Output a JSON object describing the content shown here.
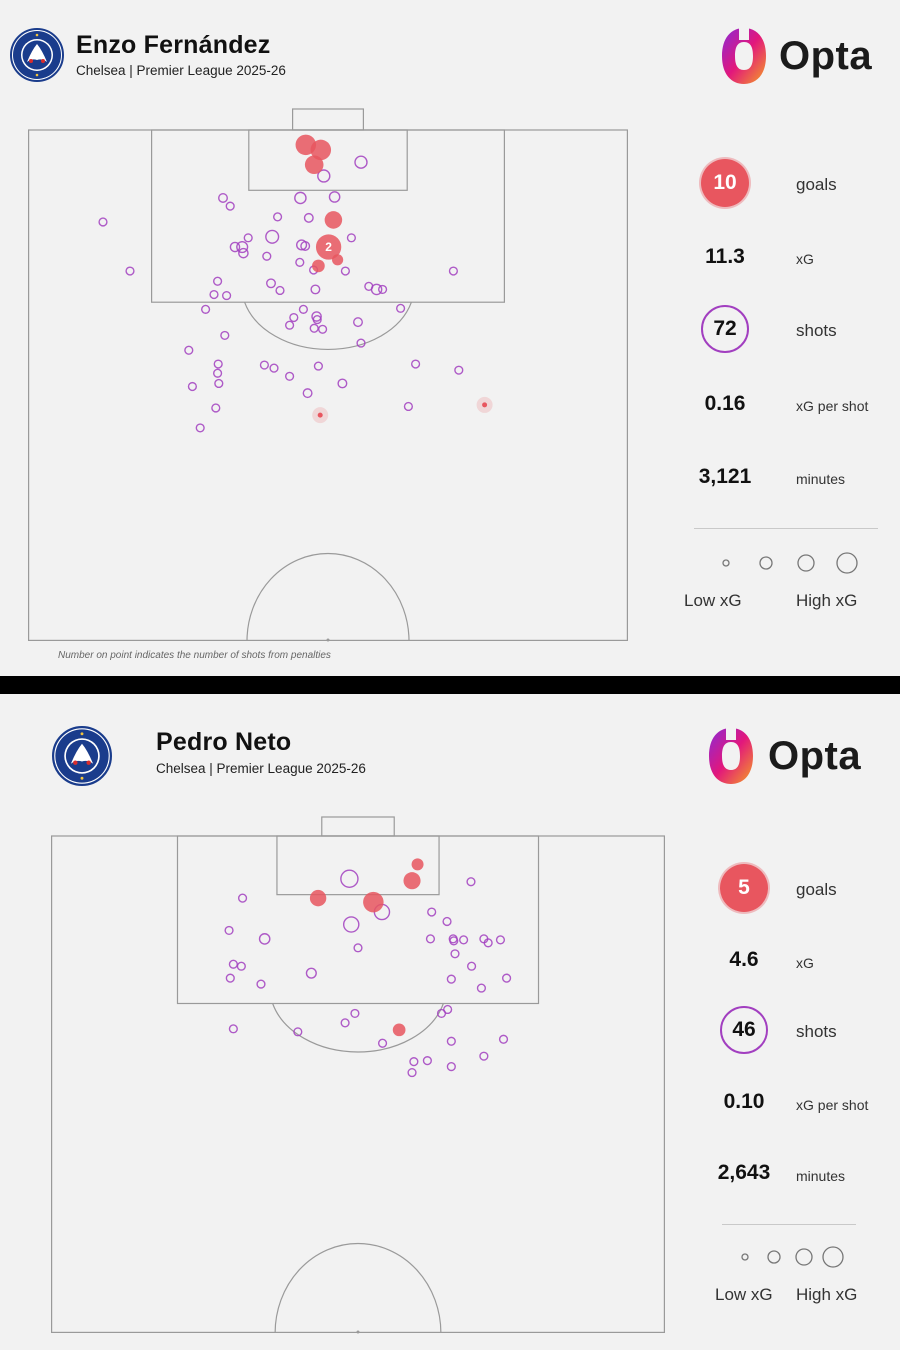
{
  "panels": [
    {
      "player": "Enzo Fernández",
      "subtitle": "Chelsea | Premier League 2025-26",
      "brand": "Opta",
      "stats": [
        {
          "value": "10",
          "label": "goals"
        },
        {
          "value": "11.3",
          "label": "xG"
        },
        {
          "value": "72",
          "label": "shots"
        },
        {
          "value": "0.16",
          "label": "xG per shot"
        },
        {
          "value": "3,121",
          "label": "minutes"
        }
      ],
      "legend": {
        "low": "Low xG",
        "high": "High xG"
      },
      "footnote": "Number on point indicates the number of shots from penalties"
    },
    {
      "player": "Pedro Neto",
      "subtitle": "Chelsea | Premier League 2025-26",
      "brand": "Opta",
      "stats": [
        {
          "value": "5",
          "label": "goals"
        },
        {
          "value": "4.6",
          "label": "xG"
        },
        {
          "value": "46",
          "label": "shots"
        },
        {
          "value": "0.10",
          "label": "xG per shot"
        },
        {
          "value": "2,643",
          "label": "minutes"
        }
      ],
      "legend": {
        "low": "Low xG",
        "high": "High xG"
      }
    }
  ],
  "colors": {
    "goal": "#e8565f",
    "shot": "#a23fc0",
    "pitch_line": "#9a9a9a",
    "background": "#f2f2f2"
  },
  "chart_data": [
    {
      "type": "scatter",
      "title": "Enzo Fernández",
      "coords": "pitch half, x = 0-100 across width, y = 0-100 distance from goal line to halfway line",
      "goals": [
        {
          "x": 46.3,
          "y": 2.9,
          "xg": 0.45
        },
        {
          "x": 48.8,
          "y": 3.9,
          "xg": 0.45
        },
        {
          "x": 47.7,
          "y": 6.8,
          "xg": 0.35
        },
        {
          "x": 50.9,
          "y": 17.6,
          "xg": 0.3
        },
        {
          "x": 50.1,
          "y": 22.9,
          "xg": 0.76,
          "label": "2"
        },
        {
          "x": 48.4,
          "y": 26.6,
          "xg": 0.12
        },
        {
          "x": 51.6,
          "y": 25.4,
          "xg": 0.08
        },
        {
          "x": 48.7,
          "y": 55.8,
          "xg": 0.03
        },
        {
          "x": 76.1,
          "y": 53.8,
          "xg": 0.03
        }
      ],
      "shots": [
        {
          "x": 55.5,
          "y": 6.3,
          "xg": 0.1
        },
        {
          "x": 49.3,
          "y": 9.0,
          "xg": 0.1
        },
        {
          "x": 32.5,
          "y": 13.3,
          "xg": 0.03
        },
        {
          "x": 45.4,
          "y": 13.3,
          "xg": 0.08
        },
        {
          "x": 51.1,
          "y": 13.1,
          "xg": 0.06
        },
        {
          "x": 33.7,
          "y": 14.9,
          "xg": 0.02
        },
        {
          "x": 41.6,
          "y": 17.0,
          "xg": 0.02
        },
        {
          "x": 46.8,
          "y": 17.2,
          "xg": 0.03
        },
        {
          "x": 40.7,
          "y": 20.9,
          "xg": 0.12
        },
        {
          "x": 36.7,
          "y": 21.1,
          "xg": 0.02
        },
        {
          "x": 34.5,
          "y": 22.9,
          "xg": 0.04
        },
        {
          "x": 35.7,
          "y": 22.9,
          "xg": 0.07
        },
        {
          "x": 45.6,
          "y": 22.5,
          "xg": 0.05
        },
        {
          "x": 46.2,
          "y": 22.7,
          "xg": 0.03
        },
        {
          "x": 53.9,
          "y": 21.1,
          "xg": 0.02
        },
        {
          "x": 12.5,
          "y": 18.0,
          "xg": 0.02
        },
        {
          "x": 35.9,
          "y": 24.1,
          "xg": 0.04
        },
        {
          "x": 39.8,
          "y": 24.7,
          "xg": 0.02
        },
        {
          "x": 45.3,
          "y": 25.9,
          "xg": 0.02
        },
        {
          "x": 47.6,
          "y": 27.4,
          "xg": 0.02
        },
        {
          "x": 52.9,
          "y": 27.6,
          "xg": 0.02
        },
        {
          "x": 17.0,
          "y": 27.6,
          "xg": 0.02
        },
        {
          "x": 70.9,
          "y": 27.6,
          "xg": 0.02
        },
        {
          "x": 31.6,
          "y": 29.6,
          "xg": 0.02
        },
        {
          "x": 40.5,
          "y": 30.0,
          "xg": 0.03
        },
        {
          "x": 42.0,
          "y": 31.4,
          "xg": 0.02
        },
        {
          "x": 47.9,
          "y": 31.2,
          "xg": 0.03
        },
        {
          "x": 56.8,
          "y": 30.6,
          "xg": 0.02
        },
        {
          "x": 58.1,
          "y": 31.2,
          "xg": 0.06
        },
        {
          "x": 59.1,
          "y": 31.2,
          "xg": 0.02
        },
        {
          "x": 31.0,
          "y": 32.2,
          "xg": 0.02
        },
        {
          "x": 33.1,
          "y": 32.4,
          "xg": 0.02
        },
        {
          "x": 29.6,
          "y": 35.1,
          "xg": 0.02
        },
        {
          "x": 45.9,
          "y": 35.1,
          "xg": 0.02
        },
        {
          "x": 62.1,
          "y": 34.9,
          "xg": 0.02
        },
        {
          "x": 44.3,
          "y": 36.7,
          "xg": 0.02
        },
        {
          "x": 48.1,
          "y": 36.5,
          "xg": 0.04
        },
        {
          "x": 48.2,
          "y": 37.1,
          "xg": 0.02
        },
        {
          "x": 55.0,
          "y": 37.6,
          "xg": 0.03
        },
        {
          "x": 43.6,
          "y": 38.2,
          "xg": 0.02
        },
        {
          "x": 47.7,
          "y": 38.8,
          "xg": 0.02
        },
        {
          "x": 49.1,
          "y": 39.0,
          "xg": 0.02
        },
        {
          "x": 32.8,
          "y": 40.2,
          "xg": 0.02
        },
        {
          "x": 55.5,
          "y": 41.7,
          "xg": 0.02
        },
        {
          "x": 26.8,
          "y": 43.1,
          "xg": 0.02
        },
        {
          "x": 31.7,
          "y": 45.8,
          "xg": 0.02
        },
        {
          "x": 64.6,
          "y": 45.8,
          "xg": 0.02
        },
        {
          "x": 31.6,
          "y": 47.6,
          "xg": 0.02
        },
        {
          "x": 41.0,
          "y": 46.6,
          "xg": 0.02
        },
        {
          "x": 39.4,
          "y": 46.0,
          "xg": 0.02
        },
        {
          "x": 48.4,
          "y": 46.2,
          "xg": 0.02
        },
        {
          "x": 71.8,
          "y": 47.0,
          "xg": 0.02
        },
        {
          "x": 43.6,
          "y": 48.2,
          "xg": 0.02
        },
        {
          "x": 31.8,
          "y": 49.6,
          "xg": 0.02
        },
        {
          "x": 27.4,
          "y": 50.2,
          "xg": 0.02
        },
        {
          "x": 52.4,
          "y": 49.6,
          "xg": 0.03
        },
        {
          "x": 46.6,
          "y": 51.5,
          "xg": 0.03
        },
        {
          "x": 31.3,
          "y": 54.4,
          "xg": 0.02
        },
        {
          "x": 63.4,
          "y": 54.1,
          "xg": 0.02
        },
        {
          "x": 28.7,
          "y": 58.3,
          "xg": 0.02
        }
      ]
    },
    {
      "type": "scatter",
      "title": "Pedro Neto",
      "coords": "pitch half, x = 0-100 across width, y = 0-100 distance from goal line to halfway line",
      "goals": [
        {
          "x": 59.7,
          "y": 5.7,
          "xg": 0.1
        },
        {
          "x": 58.8,
          "y": 9.0,
          "xg": 0.28
        },
        {
          "x": 43.5,
          "y": 12.5,
          "xg": 0.25
        },
        {
          "x": 52.5,
          "y": 13.3,
          "xg": 0.45
        },
        {
          "x": 56.7,
          "y": 39.0,
          "xg": 0.12
        }
      ],
      "shots": [
        {
          "x": 48.6,
          "y": 8.6,
          "xg": 0.28
        },
        {
          "x": 68.4,
          "y": 9.2,
          "xg": 0.02
        },
        {
          "x": 31.2,
          "y": 12.5,
          "xg": 0.02
        },
        {
          "x": 53.9,
          "y": 15.3,
          "xg": 0.2
        },
        {
          "x": 48.9,
          "y": 17.8,
          "xg": 0.2
        },
        {
          "x": 62.0,
          "y": 15.3,
          "xg": 0.02
        },
        {
          "x": 64.5,
          "y": 17.2,
          "xg": 0.02
        },
        {
          "x": 29.0,
          "y": 19.0,
          "xg": 0.02
        },
        {
          "x": 65.5,
          "y": 20.7,
          "xg": 0.02
        },
        {
          "x": 34.8,
          "y": 20.7,
          "xg": 0.06
        },
        {
          "x": 61.8,
          "y": 20.7,
          "xg": 0.02
        },
        {
          "x": 67.2,
          "y": 20.9,
          "xg": 0.02
        },
        {
          "x": 73.2,
          "y": 20.9,
          "xg": 0.02
        },
        {
          "x": 65.6,
          "y": 21.1,
          "xg": 0.02
        },
        {
          "x": 70.5,
          "y": 20.7,
          "xg": 0.02
        },
        {
          "x": 71.2,
          "y": 21.5,
          "xg": 0.02
        },
        {
          "x": 50.0,
          "y": 22.5,
          "xg": 0.02
        },
        {
          "x": 65.8,
          "y": 23.7,
          "xg": 0.02
        },
        {
          "x": 29.7,
          "y": 25.8,
          "xg": 0.02
        },
        {
          "x": 31.0,
          "y": 26.2,
          "xg": 0.02
        },
        {
          "x": 68.5,
          "y": 26.2,
          "xg": 0.02
        },
        {
          "x": 42.4,
          "y": 27.6,
          "xg": 0.05
        },
        {
          "x": 29.2,
          "y": 28.6,
          "xg": 0.02
        },
        {
          "x": 65.2,
          "y": 28.8,
          "xg": 0.02
        },
        {
          "x": 74.2,
          "y": 28.6,
          "xg": 0.02
        },
        {
          "x": 34.2,
          "y": 29.8,
          "xg": 0.02
        },
        {
          "x": 70.1,
          "y": 30.6,
          "xg": 0.02
        },
        {
          "x": 64.6,
          "y": 34.9,
          "xg": 0.02
        },
        {
          "x": 49.5,
          "y": 35.7,
          "xg": 0.02
        },
        {
          "x": 63.6,
          "y": 35.7,
          "xg": 0.02
        },
        {
          "x": 47.9,
          "y": 37.6,
          "xg": 0.02
        },
        {
          "x": 29.7,
          "y": 38.8,
          "xg": 0.02
        },
        {
          "x": 40.2,
          "y": 39.4,
          "xg": 0.02
        },
        {
          "x": 54.0,
          "y": 41.7,
          "xg": 0.02
        },
        {
          "x": 65.2,
          "y": 41.3,
          "xg": 0.02
        },
        {
          "x": 73.7,
          "y": 40.9,
          "xg": 0.02
        },
        {
          "x": 70.5,
          "y": 44.3,
          "xg": 0.02
        },
        {
          "x": 59.1,
          "y": 45.4,
          "xg": 0.02
        },
        {
          "x": 61.3,
          "y": 45.2,
          "xg": 0.02
        },
        {
          "x": 65.2,
          "y": 46.4,
          "xg": 0.02
        },
        {
          "x": 58.8,
          "y": 47.6,
          "xg": 0.02
        }
      ]
    }
  ]
}
